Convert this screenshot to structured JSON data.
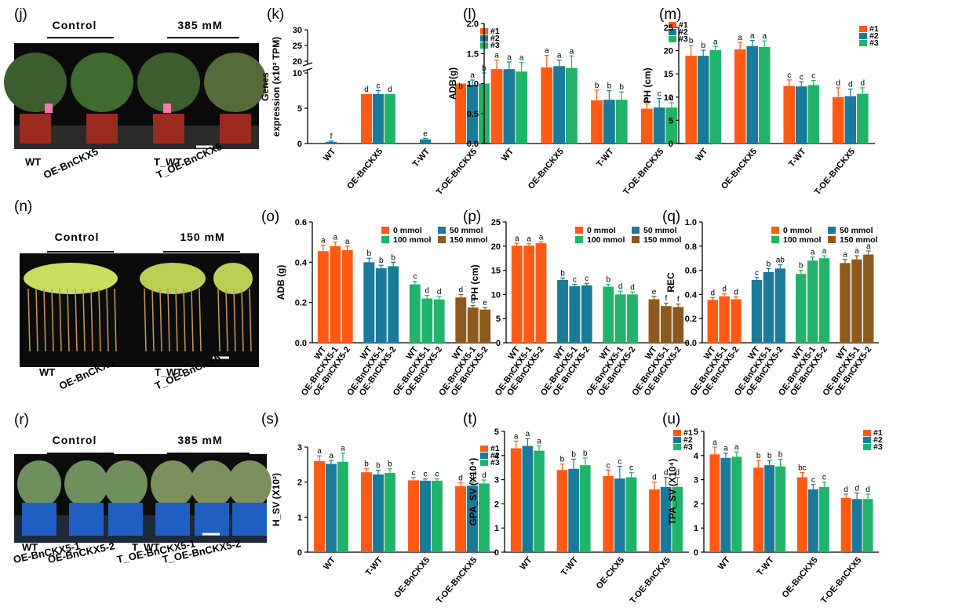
{
  "colors": {
    "orange": "#ff5a14",
    "blue": "#1a7a99",
    "green": "#21b36a",
    "brown": "#8b5a1c"
  },
  "photos": [
    {
      "label": "(j)",
      "headers": [
        "Control",
        "385 mM"
      ],
      "labels": [
        "WT",
        "OE-BnCKX5",
        "T_WT",
        "T_OE-BnCKX5"
      ]
    },
    {
      "label": "(n)",
      "headers": [
        "Control",
        "150 mM"
      ],
      "labels": [
        "WT",
        "OE-BnCKX5",
        "T_WT",
        "T_OE-BnCKX5"
      ]
    },
    {
      "label": "(r)",
      "headers": [
        "Control",
        "385 mM"
      ],
      "labels": [
        "WT",
        "OE-BnCKX5-1",
        "OE-BnCKX5-2",
        "T_WT",
        "T_OE-BnCKX5-1",
        "T_OE-BnCKX5-2"
      ]
    }
  ],
  "chart_data": [
    {
      "id": "k",
      "label": "(k)",
      "type": "bar",
      "ylabel": [
        "Genes",
        "expression (x10² TPM)"
      ],
      "broken": true,
      "ytick_labels": [
        "0",
        "5",
        "10",
        "20",
        "25",
        "30"
      ],
      "categories": [
        "WT",
        "OE-BnCKX5",
        "T-WT",
        "T-OE-BnCKX5"
      ],
      "legend": [
        "#1",
        "#2",
        "#3"
      ],
      "series": [
        {
          "name": "#1",
          "values": [
            0,
            7,
            0,
            8.5
          ],
          "err": [
            0,
            0,
            0,
            2
          ],
          "sig": [
            "",
            "d",
            "",
            "b"
          ]
        },
        {
          "name": "#2",
          "values": [
            0.25,
            7,
            0.6,
            12.5
          ],
          "err": [
            0.1,
            0.5,
            0.15,
            1.5
          ],
          "sig": [
            "f",
            "c",
            "e",
            "a"
          ]
        },
        {
          "name": "#3",
          "values": [
            0,
            7,
            0,
            8.5
          ],
          "err": [
            0,
            0,
            0,
            1.5
          ],
          "sig": [
            "",
            "d",
            "",
            "b"
          ]
        }
      ]
    },
    {
      "id": "l",
      "label": "(l)",
      "type": "bar",
      "ylabel": [
        "ADB(g)"
      ],
      "ylim": [
        0,
        2
      ],
      "ytick_labels": [
        "0.0",
        "0.5",
        "1.0",
        "1.5",
        "2.0"
      ],
      "categories": [
        "WT",
        "OE-BnCKX5",
        "T-WT",
        "T-OE-BnCKX5"
      ],
      "legend": [
        "#1",
        "#2",
        "#3"
      ],
      "series": [
        {
          "name": "#1",
          "values": [
            1.24,
            1.27,
            0.72,
            0.58
          ],
          "err": [
            0.15,
            0.2,
            0.17,
            0.08
          ],
          "sig": [
            "a",
            "a",
            "b",
            "c"
          ]
        },
        {
          "name": "#2",
          "values": [
            1.24,
            1.29,
            0.73,
            0.6
          ],
          "err": [
            0.12,
            0.1,
            0.15,
            0.15
          ],
          "sig": [
            "a",
            "a",
            "b",
            "c"
          ]
        },
        {
          "name": "#3",
          "values": [
            1.2,
            1.26,
            0.73,
            0.6
          ],
          "err": [
            0.15,
            0.2,
            0.13,
            0.08
          ],
          "sig": [
            "a",
            "a",
            "b",
            "c"
          ]
        }
      ]
    },
    {
      "id": "m",
      "label": "(m)",
      "type": "bar",
      "ylabel": [
        "PH (cm)"
      ],
      "ylim": [
        0,
        25
      ],
      "ytick_labels": [
        "0",
        "5",
        "10",
        "15",
        "20",
        "25"
      ],
      "categories": [
        "WT",
        "OE-BnCKX5",
        "T-WT",
        "T-OE-BnCKX5"
      ],
      "legend": [
        "#1",
        "#2",
        "#3"
      ],
      "series": [
        {
          "name": "#1",
          "values": [
            18.9,
            20.3,
            12.4,
            10
          ],
          "err": [
            2.2,
            1.5,
            1.3,
            2
          ],
          "sig": [
            "b",
            "a",
            "c",
            "d"
          ]
        },
        {
          "name": "#2",
          "values": [
            18.9,
            21,
            12.3,
            10.2
          ],
          "err": [
            1.2,
            1.2,
            1,
            1.5
          ],
          "sig": [
            "b",
            "a",
            "c",
            "d"
          ]
        },
        {
          "name": "#3",
          "values": [
            20.1,
            20.8,
            12.6,
            10.7
          ],
          "err": [
            0.8,
            1.3,
            1,
            1.3
          ],
          "sig": [
            "a",
            "a",
            "c",
            "d"
          ]
        }
      ]
    },
    {
      "id": "o",
      "label": "(o)",
      "type": "bar",
      "ylabel": [
        "ADB (g)"
      ],
      "ylim": [
        0,
        0.6
      ],
      "grouped4": true,
      "ytick_labels": [
        "0.0",
        "0.2",
        "0.4",
        "0.6"
      ],
      "sublabels": [
        "WT",
        "OE-BnCKX5-1",
        "OE-BnCKX5-2"
      ],
      "legend": [
        "0 mmol",
        "50 mmol",
        "100 mmol",
        "150 mmol"
      ],
      "series": [
        {
          "name": "0 mmol",
          "values": [
            0.455,
            0.48,
            0.46
          ],
          "err": [
            0.03,
            0.02,
            0.02
          ],
          "sig": [
            "a",
            "a",
            "a"
          ]
        },
        {
          "name": "50 mmol",
          "values": [
            0.4,
            0.37,
            0.38
          ],
          "err": [
            0.02,
            0.015,
            0.02
          ],
          "sig": [
            "b",
            "b",
            "b"
          ]
        },
        {
          "name": "100 mmol",
          "values": [
            0.29,
            0.22,
            0.215
          ],
          "err": [
            0.015,
            0.015,
            0.015
          ],
          "sig": [
            "c",
            "d",
            "d"
          ]
        },
        {
          "name": "150 mmol",
          "values": [
            0.225,
            0.175,
            0.165
          ],
          "err": [
            0.015,
            0.01,
            0.01
          ],
          "sig": [
            "d",
            "e",
            "e"
          ]
        }
      ]
    },
    {
      "id": "p",
      "label": "(p)",
      "type": "bar",
      "ylabel": [
        "PH (cm)"
      ],
      "ylim": [
        0,
        25
      ],
      "grouped4": true,
      "ytick_labels": [
        "0",
        "5",
        "10",
        "15",
        "20",
        "25"
      ],
      "sublabels": [
        "WT",
        "OE-BnCKX5-1",
        "OE-BnCKX5-2"
      ],
      "legend": [
        "0 mmol",
        "50 mmol",
        "100 mmol",
        "150 mmol"
      ],
      "series": [
        {
          "name": "0 mmol",
          "values": [
            20.1,
            20.1,
            20.6
          ],
          "err": [
            0.5,
            0.4,
            0.3
          ],
          "sig": [
            "a",
            "a",
            "a"
          ]
        },
        {
          "name": "50 mmol",
          "values": [
            13,
            11.7,
            11.9
          ],
          "err": [
            0.4,
            0.4,
            0.4
          ],
          "sig": [
            "b",
            "c",
            "c"
          ]
        },
        {
          "name": "100 mmol",
          "values": [
            11.6,
            10,
            10
          ],
          "err": [
            0.5,
            0.7,
            0.5
          ],
          "sig": [
            "b",
            "d",
            "d"
          ]
        },
        {
          "name": "150 mmol",
          "values": [
            9,
            7.6,
            7.4
          ],
          "err": [
            0.6,
            0.6,
            0.6
          ],
          "sig": [
            "e",
            "f",
            "f"
          ]
        }
      ]
    },
    {
      "id": "q",
      "label": "(q)",
      "type": "bar",
      "ylabel": [
        "REC"
      ],
      "ylim": [
        0,
        1
      ],
      "grouped4": true,
      "ytick_labels": [
        "0.0",
        "0.2",
        "0.4",
        "0.6",
        "0.8",
        "1.0"
      ],
      "sublabels": [
        "WT",
        "OE-BnCKX5-1",
        "OE-BnCKX5-2"
      ],
      "legend": [
        "0 mmol",
        "50 mmol",
        "100 mmol",
        "150 mmol"
      ],
      "series": [
        {
          "name": "0 mmol",
          "values": [
            0.355,
            0.385,
            0.36
          ],
          "err": [
            0.02,
            0.02,
            0.02
          ],
          "sig": [
            "d",
            "d",
            "d"
          ]
        },
        {
          "name": "50 mmol",
          "values": [
            0.52,
            0.585,
            0.615
          ],
          "err": [
            0.02,
            0.03,
            0.03
          ],
          "sig": [
            "c",
            "b",
            "ab"
          ]
        },
        {
          "name": "100 mmol",
          "values": [
            0.57,
            0.68,
            0.7
          ],
          "err": [
            0.03,
            0.03,
            0.02
          ],
          "sig": [
            "b",
            "a",
            "a"
          ]
        },
        {
          "name": "150 mmol",
          "values": [
            0.66,
            0.69,
            0.73
          ],
          "err": [
            0.03,
            0.03,
            0.03
          ],
          "sig": [
            "a",
            "a",
            "a"
          ]
        }
      ]
    },
    {
      "id": "s",
      "label": "(s)",
      "type": "bar",
      "ylabel": [
        "H_SV (X10²)"
      ],
      "ylim": [
        0,
        3
      ],
      "ytick_labels": [
        "0",
        "1",
        "2",
        "3"
      ],
      "categories": [
        "WT",
        "T-WT",
        "OE-BnCKX5",
        "T-OE-BnCKX5"
      ],
      "legend": [
        "#1",
        "#2",
        "#3"
      ],
      "series": [
        {
          "name": "#1",
          "values": [
            2.6,
            2.28,
            2.05,
            1.88
          ],
          "err": [
            0.15,
            0.1,
            0.08,
            0.1
          ],
          "sig": [
            "a",
            "b",
            "c",
            "d"
          ]
        },
        {
          "name": "#2",
          "values": [
            2.52,
            2.22,
            2.04,
            1.9
          ],
          "err": [
            0.1,
            0.12,
            0.05,
            0.1
          ],
          "sig": [
            "a",
            "b",
            "c",
            "d"
          ]
        },
        {
          "name": "#3",
          "values": [
            2.58,
            2.26,
            2.04,
            1.96
          ],
          "err": [
            0.25,
            0.12,
            0.05,
            0.1
          ],
          "sig": [
            "a",
            "b",
            "c",
            "d"
          ]
        }
      ]
    },
    {
      "id": "t",
      "label": "(t)",
      "type": "bar",
      "ylabel": [
        "GPA_SV (X10⁴)"
      ],
      "ylim": [
        0,
        5
      ],
      "ytick_labels": [
        "0",
        "1",
        "2",
        "3",
        "4",
        "5"
      ],
      "categories": [
        "WT",
        "T-WT",
        "OE-CKX5",
        "T-OE-BnCKX5"
      ],
      "legend": [
        "#1",
        "#2",
        "#3"
      ],
      "series": [
        {
          "name": "#1",
          "values": [
            4.3,
            3.4,
            3.15,
            2.6
          ],
          "err": [
            0.3,
            0.25,
            0.25,
            0.3
          ],
          "sig": [
            "a",
            "b",
            "c",
            "d"
          ]
        },
        {
          "name": "#2",
          "values": [
            4.4,
            3.45,
            3.05,
            2.7
          ],
          "err": [
            0.3,
            0.4,
            0.5,
            0.4
          ],
          "sig": [
            "a",
            "b",
            "c",
            "d"
          ]
        },
        {
          "name": "#3",
          "values": [
            4.2,
            3.6,
            3.1,
            2.7
          ],
          "err": [
            0.2,
            0.3,
            0.2,
            0.4
          ],
          "sig": [
            "a",
            "b",
            "c",
            "d"
          ]
        }
      ]
    },
    {
      "id": "u",
      "label": "(u)",
      "type": "bar",
      "ylabel": [
        "TPA_SV (X10⁴)"
      ],
      "ylim": [
        0,
        5
      ],
      "ytick_labels": [
        "0",
        "1",
        "2",
        "3",
        "4",
        "5"
      ],
      "categories": [
        "WT",
        "T-WT",
        "OE-BnCKX5",
        "T-OE-BnCKX5"
      ],
      "legend": [
        "#1",
        "#2",
        "#3"
      ],
      "series": [
        {
          "name": "#1",
          "values": [
            4.05,
            3.5,
            3.1,
            2.25
          ],
          "err": [
            0.3,
            0.3,
            0.2,
            0.15
          ],
          "sig": [
            "a",
            "b",
            "bc",
            "d"
          ]
        },
        {
          "name": "#2",
          "values": [
            3.9,
            3.6,
            2.6,
            2.2
          ],
          "err": [
            0.2,
            0.2,
            0.2,
            0.25
          ],
          "sig": [
            "a",
            "b",
            "c",
            "d"
          ]
        },
        {
          "name": "#3",
          "values": [
            3.95,
            3.55,
            2.7,
            2.2
          ],
          "err": [
            0.2,
            0.3,
            0.2,
            0.2
          ],
          "sig": [
            "a",
            "b",
            "c",
            "d"
          ]
        }
      ]
    }
  ]
}
